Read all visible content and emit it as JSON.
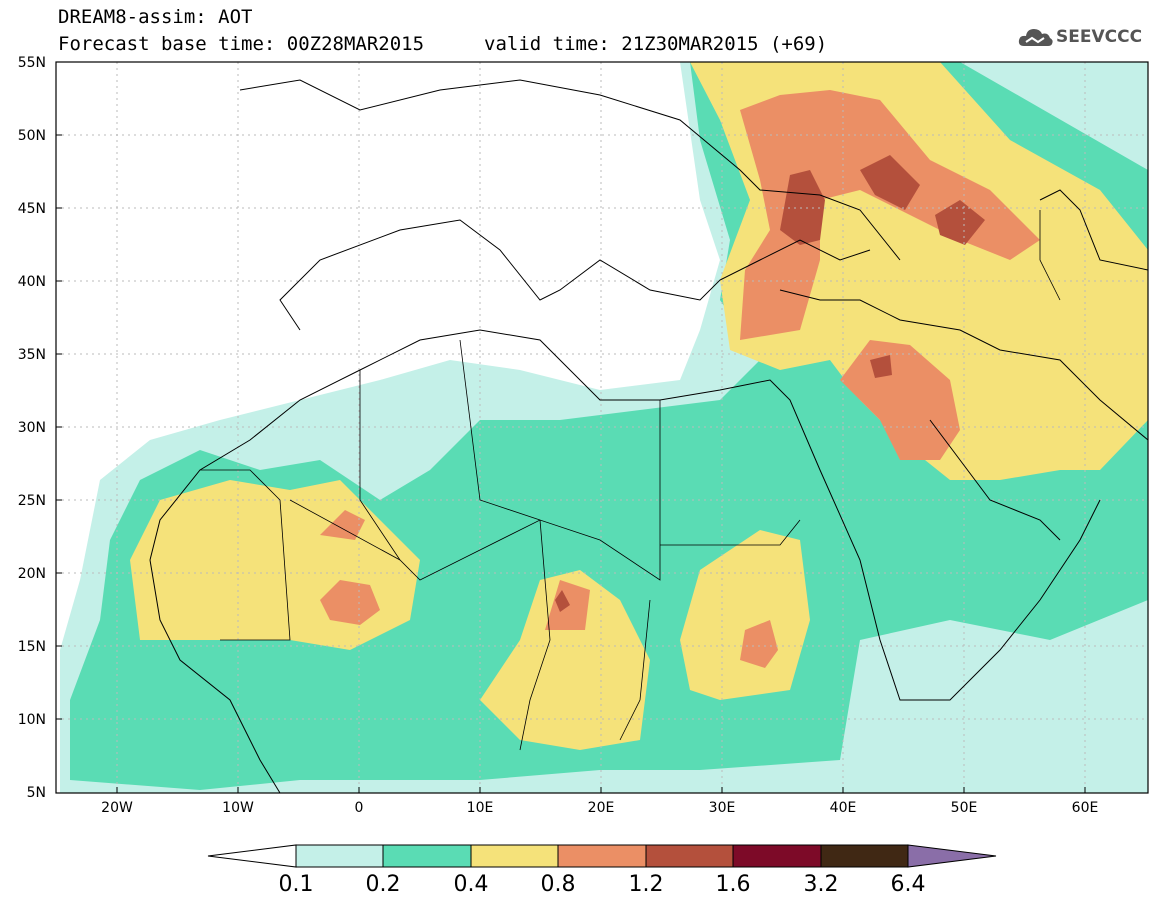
{
  "header": {
    "title": "DREAM8-assim: AOT",
    "base_time": "Forecast base time: 00Z28MAR2015",
    "valid_time": "valid time: 21Z30MAR2015 (+69)"
  },
  "logo": {
    "text": "SEEVCCC",
    "icon": "cloud-icon"
  },
  "map": {
    "lat_labels": [
      "55N",
      "50N",
      "45N",
      "40N",
      "35N",
      "30N",
      "25N",
      "20N",
      "15N",
      "10N",
      "5N"
    ],
    "lon_labels": [
      "20W",
      "10W",
      "0",
      "10E",
      "20E",
      "30E",
      "40E",
      "50E",
      "60E"
    ],
    "lat_range": [
      5,
      55
    ],
    "lon_range": [
      -25,
      65
    ]
  },
  "colorbar": {
    "labels": [
      "0.1",
      "0.2",
      "0.4",
      "0.8",
      "1.2",
      "1.6",
      "3.2",
      "6.4"
    ],
    "colors": [
      "#c4f0e8",
      "#5adcb4",
      "#f5e27a",
      "#eb8f65",
      "#b4503c",
      "#7d0a28",
      "#402814",
      "#8a6ea8"
    ]
  }
}
